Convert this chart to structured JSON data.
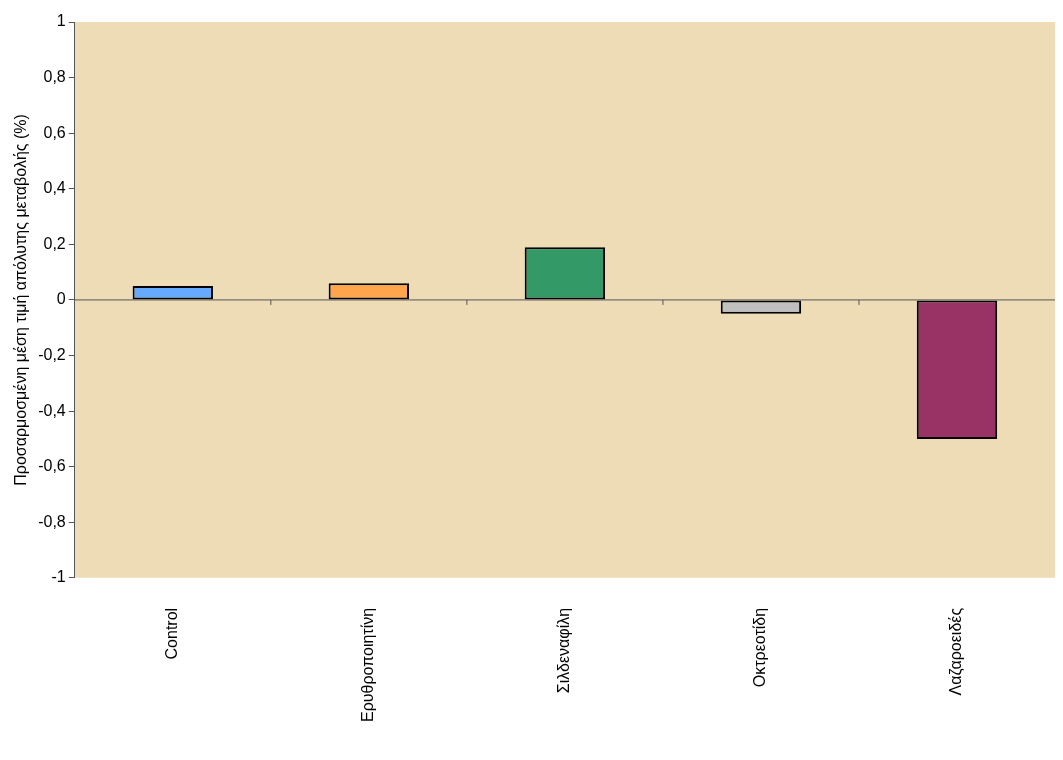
{
  "chart_data": {
    "type": "bar",
    "ylabel": "Προσαρμοσμένη μέση τιμή απόλυτης μεταβολής (%)",
    "categories": [
      "Control",
      "Ερυθροποιητίνη",
      "Σιλδεναφίλη",
      "Οκτρεοτίδη",
      "Λαζαροειδές"
    ],
    "values": [
      0.05,
      0.06,
      0.19,
      -0.05,
      -0.5
    ],
    "colors": [
      "#66aaff",
      "#ffa64d",
      "#339966",
      "#c0c0c0",
      "#993366"
    ],
    "ylim": [
      -1,
      1
    ],
    "yticks": [
      -1,
      {
        "value": -0.8,
        "label": "-0,8"
      },
      {
        "value": -0.6,
        "label": "-0,6"
      },
      {
        "value": -0.4,
        "label": "-0,4"
      },
      {
        "value": -0.2,
        "label": "-0,2"
      },
      0,
      {
        "value": 0.2,
        "label": "0,2"
      },
      {
        "value": 0.4,
        "label": "0,4"
      },
      {
        "value": 0.6,
        "label": "0,6"
      },
      {
        "value": 0.8,
        "label": "0,8"
      },
      1
    ],
    "ref_lines": [
      {
        "axis": "y",
        "value": 0,
        "color": "#555555"
      }
    ],
    "grid": false,
    "legend": false
  }
}
